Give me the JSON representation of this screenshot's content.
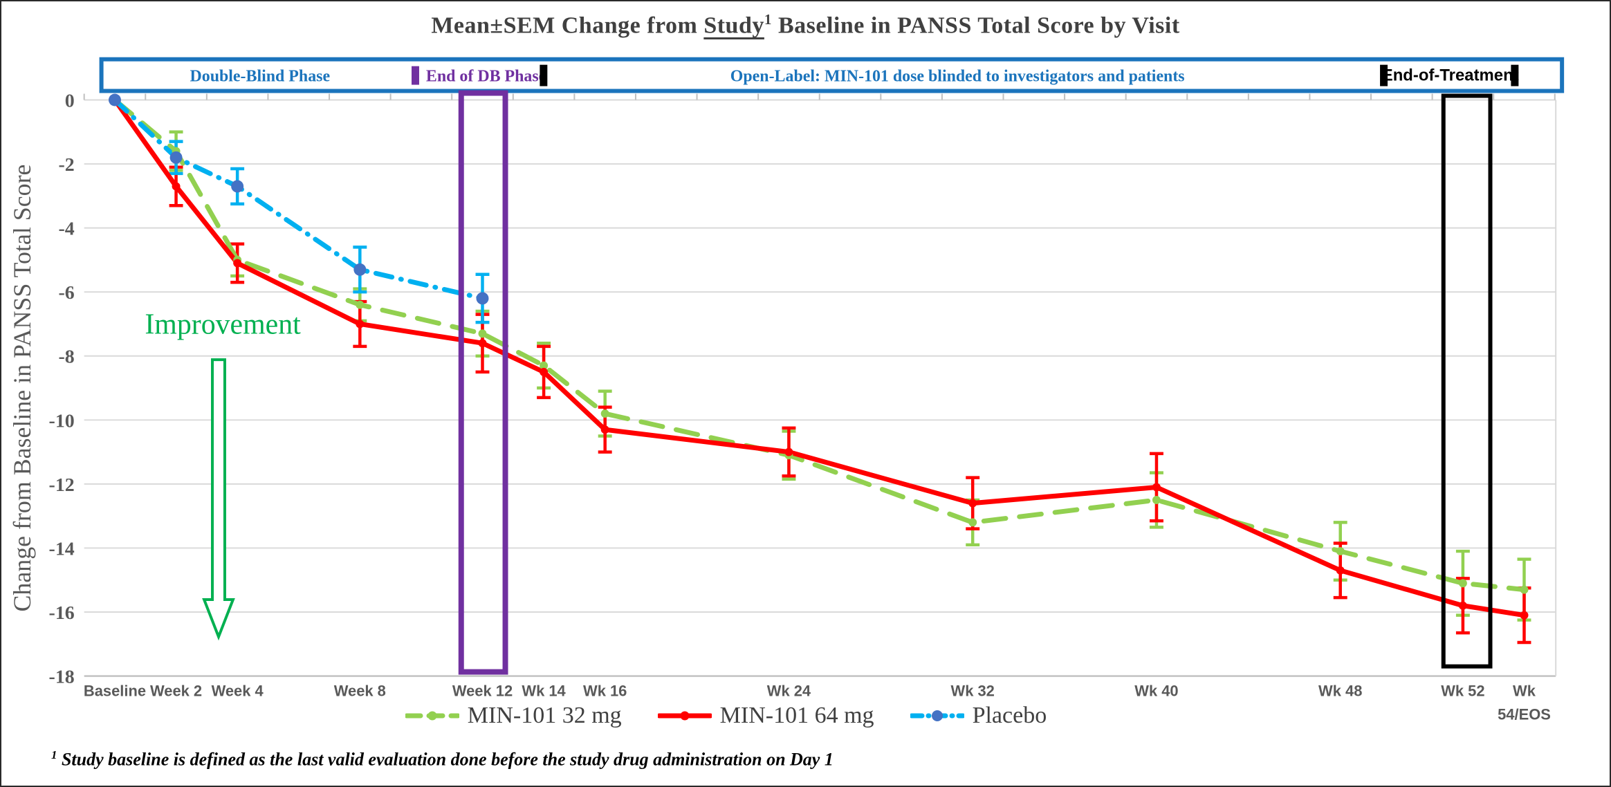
{
  "title": {
    "part1": "Mean±SEM Change from ",
    "underlined": "Study",
    "sup": "1",
    "part3": " Baseline in PANSS Total Score by Visit"
  },
  "banner": {
    "double_blind": "Double-Blind Phase",
    "end_db": "End of DB Phase",
    "open_label": "Open-Label: MIN-101 dose blinded to investigators and patients",
    "end_of_treatment": "End-of-Treatment"
  },
  "annotations": {
    "improvement": "Improvement"
  },
  "axis": {
    "y_title": "Change from Baseline in PANSS Total Score",
    "y_ticks": [
      0,
      -2,
      -4,
      -6,
      -8,
      -10,
      -12,
      -14,
      -16,
      -18
    ]
  },
  "footnote": {
    "sup": "1",
    "text": " Study baseline is defined as the last valid evaluation done before the study drug administration on Day 1"
  },
  "colors": {
    "banner_blue": "#1B74BC",
    "purple": "#7030A0",
    "black": "#000000",
    "improvement_green": "#00B050",
    "grid": "#D9D9D9",
    "axis_line": "#BFBFBF",
    "axis_text": "#595959",
    "title_text": "#404040"
  },
  "chart_data": {
    "type": "line",
    "title": "Mean±SEM Change from Study¹ Baseline in PANSS Total Score by Visit",
    "ylabel": "Change from Baseline in PANSS Total Score",
    "ylim": [
      -18,
      0
    ],
    "grid": true,
    "legend_position": "bottom",
    "categories": [
      "Baseline",
      "Week 2",
      "Week 4",
      "Week 8",
      "Week 12",
      "Wk 14",
      "Wk 16",
      "Wk 24",
      "Wk 32",
      "Wk 40",
      "Wk 48",
      "Wk 52",
      "Wk 54/EOS"
    ],
    "category_slots": [
      0,
      1,
      2,
      4,
      6,
      7,
      8,
      11,
      14,
      17,
      20,
      22,
      23
    ],
    "series": [
      {
        "name": "MIN-101 32 mg",
        "color": "#92D050",
        "style": "dashed",
        "values": [
          0,
          -1.6,
          -5.0,
          -6.4,
          -7.3,
          -8.3,
          -9.8,
          -11.1,
          -13.2,
          -12.5,
          -14.1,
          -15.1,
          -15.3
        ],
        "sem": [
          0,
          0.6,
          0.5,
          0.5,
          0.7,
          0.7,
          0.7,
          0.75,
          0.7,
          0.85,
          0.9,
          1.0,
          0.95
        ]
      },
      {
        "name": "MIN-101 64 mg",
        "color": "#FF0000",
        "style": "solid",
        "values": [
          0,
          -2.7,
          -5.1,
          -7.0,
          -7.6,
          -8.5,
          -10.3,
          -11.0,
          -12.6,
          -12.1,
          -14.7,
          -15.8,
          -16.1
        ],
        "sem": [
          0,
          0.6,
          0.6,
          0.7,
          0.9,
          0.8,
          0.7,
          0.75,
          0.8,
          1.05,
          0.85,
          0.85,
          0.85
        ]
      },
      {
        "name": "Placebo",
        "color": "#00B0F0",
        "marker_color": "#4472C4",
        "style": "dash-dot",
        "values": [
          0,
          -1.8,
          -2.7,
          -5.3,
          -6.2,
          null,
          null,
          null,
          null,
          null,
          null,
          null,
          null
        ],
        "sem": [
          0,
          0.5,
          0.55,
          0.7,
          0.75,
          null,
          null,
          null,
          null,
          null,
          null,
          null,
          null
        ]
      }
    ],
    "highlight_boxes": [
      {
        "label": "End of DB Phase",
        "category": "Week 12",
        "color": "#7030A0"
      },
      {
        "label": "End-of-Treatment",
        "category": "Wk 52",
        "color": "#000000"
      }
    ]
  }
}
